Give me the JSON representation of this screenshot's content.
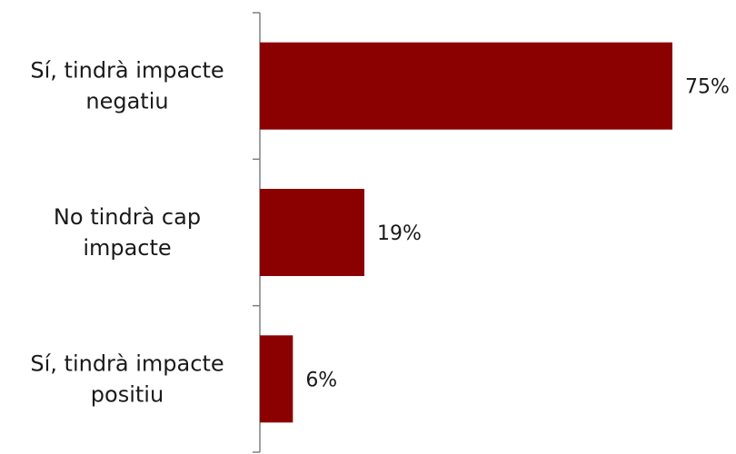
{
  "chart_data": {
    "type": "bar",
    "orientation": "horizontal",
    "categories": [
      [
        "Sí, tindrà  impacte",
        "negatiu"
      ],
      [
        "No tindrà cap",
        "impacte"
      ],
      [
        "Sí, tindrà impacte",
        "positiu"
      ]
    ],
    "values": [
      75,
      19,
      6
    ],
    "value_labels": [
      "75%",
      "19%",
      "6%"
    ],
    "xlim": [
      0,
      100
    ],
    "grid": false,
    "legend": "none",
    "bar_color": "#8B0000",
    "axis_color": "#808080"
  }
}
